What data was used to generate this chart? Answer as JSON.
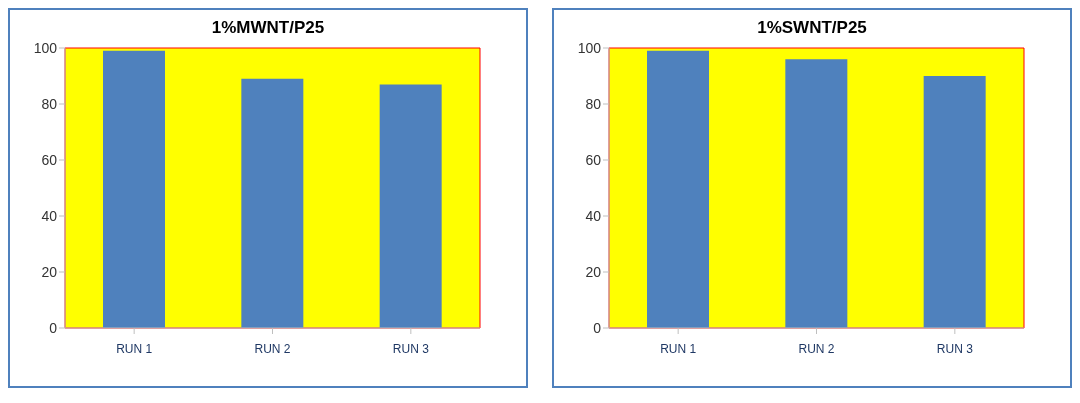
{
  "chart_data": [
    {
      "type": "bar",
      "title": "1%MWNT/P25",
      "categories": [
        "RUN 1",
        "RUN 2",
        "RUN 3"
      ],
      "values": [
        99,
        89,
        87
      ],
      "color": "#4f81bd",
      "ylim": [
        0,
        100
      ],
      "yticks": [
        0,
        20,
        40,
        60,
        80,
        100
      ],
      "grid": false,
      "legend": false
    },
    {
      "type": "bar",
      "title": "1%SWNT/P25",
      "categories": [
        "RUN 1",
        "RUN 2",
        "RUN 3"
      ],
      "values": [
        99,
        96,
        90
      ],
      "color": "#4f81bd",
      "ylim": [
        0,
        100
      ],
      "yticks": [
        0,
        20,
        40,
        60,
        80,
        100
      ],
      "grid": false,
      "legend": false
    }
  ]
}
